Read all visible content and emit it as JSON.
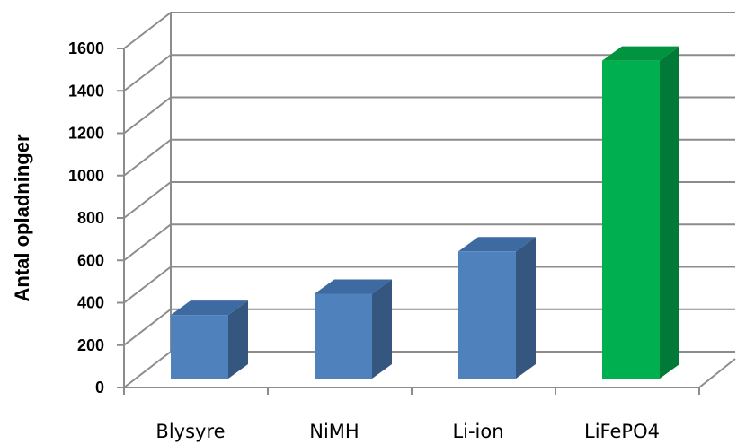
{
  "chart_data": {
    "type": "bar",
    "categories": [
      "Blysyre",
      "NiMH",
      "Li-ion",
      "LiFePO4"
    ],
    "values": [
      300,
      400,
      600,
      1500
    ],
    "title": "",
    "xlabel": "",
    "ylabel": "Antal opladninger",
    "ylim": [
      0,
      1600
    ],
    "yticks": [
      0,
      200,
      400,
      600,
      800,
      1000,
      1200,
      1400,
      1600
    ],
    "grid": true,
    "style": "3d-column",
    "colors": {
      "default": {
        "front": "#4f81bd",
        "side": "#34567f",
        "top": "#3d6aa0"
      },
      "highlight": {
        "front": "#00b050",
        "side": "#007a36",
        "top": "#00943f"
      }
    },
    "highlight_index": 3
  }
}
